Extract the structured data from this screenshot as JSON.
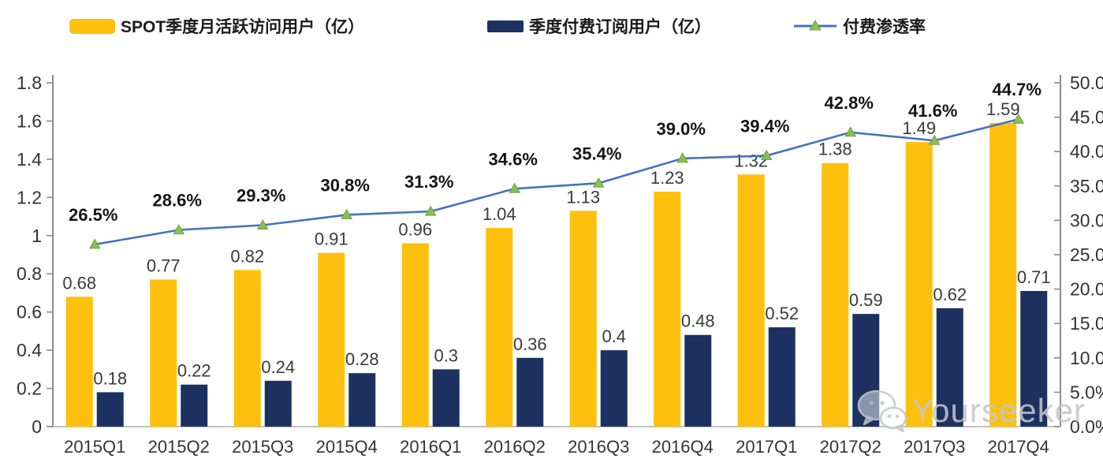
{
  "legend": [
    {
      "label": "SPOT季度月活跃访问用户（亿）",
      "swatch": "bar",
      "color": "#FDC00D"
    },
    {
      "label": "季度付费订阅用户（亿）",
      "swatch": "bar",
      "color": "#1D3160"
    },
    {
      "label": "付费渗透率",
      "swatch": "line",
      "color": "#4472C4",
      "marker_fill": "#8CBF51",
      "marker_edge": "#70A13E"
    }
  ],
  "watermark": {
    "text": "Yourseeker",
    "icon": "wechat-icon",
    "color": "#c2c7cc"
  },
  "chart_data": {
    "type": "bar+line combo",
    "title": "",
    "categories": [
      "2015Q1",
      "2015Q2",
      "2015Q3",
      "2015Q4",
      "2016Q1",
      "2016Q2",
      "2016Q3",
      "2016Q4",
      "2017Q1",
      "2017Q2",
      "2017Q3",
      "2017Q4"
    ],
    "series": [
      {
        "name": "SPOT季度月活跃访问用户（亿）",
        "type": "bar",
        "axis": "left",
        "color": "#FDC00D",
        "values": [
          0.68,
          0.77,
          0.82,
          0.91,
          0.96,
          1.04,
          1.13,
          1.23,
          1.32,
          1.38,
          1.49,
          1.59
        ],
        "labels": [
          "0.68",
          "0.77",
          "0.82",
          "0.91",
          "0.96",
          "1.04",
          "1.13",
          "1.23",
          "1.32",
          "1.38",
          "1.49",
          "1.59"
        ]
      },
      {
        "name": "季度付费订阅用户（亿）",
        "type": "bar",
        "axis": "left",
        "color": "#1D3160",
        "values": [
          0.18,
          0.22,
          0.24,
          0.28,
          0.3,
          0.36,
          0.4,
          0.48,
          0.52,
          0.59,
          0.62,
          0.71
        ],
        "labels": [
          "0.18",
          "0.22",
          "0.24",
          "0.28",
          "0.3",
          "0.36",
          "0.4",
          "0.48",
          "0.52",
          "0.59",
          "0.62",
          "0.71"
        ]
      },
      {
        "name": "付费渗透率",
        "type": "line",
        "axis": "right",
        "color": "#4472C4",
        "marker": "triangle",
        "marker_fill": "#8CBF51",
        "marker_edge": "#70A13E",
        "values": [
          26.5,
          28.6,
          29.3,
          30.8,
          31.3,
          34.6,
          35.4,
          39.0,
          39.4,
          42.8,
          41.6,
          44.7
        ],
        "labels": [
          "26.5%",
          "28.6%",
          "29.3%",
          "30.8%",
          "31.3%",
          "34.6%",
          "35.4%",
          "39.0%",
          "39.4%",
          "42.8%",
          "41.6%",
          "44.7%"
        ]
      }
    ],
    "left_axis": {
      "min": 0,
      "max": 1.8,
      "ticks": [
        "0",
        "0.2",
        "0.4",
        "0.6",
        "0.8",
        "1",
        "1.2",
        "1.4",
        "1.6",
        "1.8"
      ]
    },
    "right_axis": {
      "min": 0,
      "max": 50,
      "ticks": [
        "0.0%",
        "5.0%",
        "10.0%",
        "15.0%",
        "20.0%",
        "25.0%",
        "30.0%",
        "35.0%",
        "40.0%",
        "45.0%",
        "50.0%"
      ]
    },
    "grid": false,
    "legend_position": "top",
    "colors": {
      "axis_line": "#8C8C8C",
      "baseline": "#ABABAB",
      "tick_label": "#333333",
      "value_label": "#3A3A3A",
      "pct_label": "#141414"
    }
  }
}
